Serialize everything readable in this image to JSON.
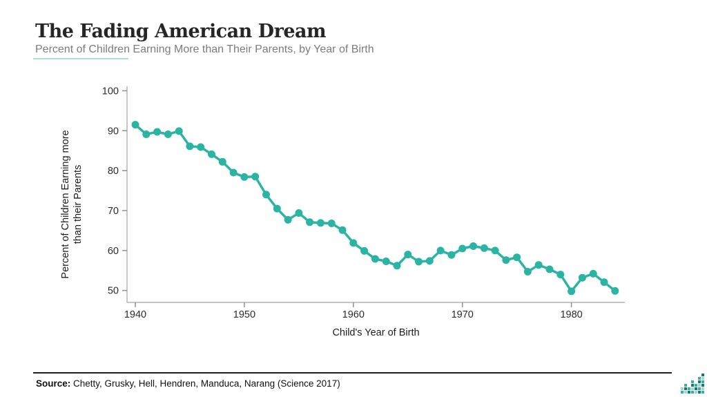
{
  "header": {
    "title": "The Fading American Dream",
    "subtitle": "Percent of Children Earning More than Their Parents, by Year of Birth"
  },
  "chart_data": {
    "type": "line",
    "title": "The Fading American Dream",
    "subtitle": "Percent of Children Earning More than Their Parents, by Year of Birth",
    "series_name": "Percent of children earning more than their parents",
    "x": [
      1940,
      1941,
      1942,
      1943,
      1944,
      1945,
      1946,
      1947,
      1948,
      1949,
      1950,
      1951,
      1952,
      1953,
      1954,
      1955,
      1956,
      1957,
      1958,
      1959,
      1960,
      1961,
      1962,
      1963,
      1964,
      1965,
      1966,
      1967,
      1968,
      1969,
      1970,
      1971,
      1972,
      1973,
      1974,
      1975,
      1976,
      1977,
      1978,
      1979,
      1980,
      1981,
      1982,
      1983,
      1984
    ],
    "values": [
      91.5,
      89.1,
      89.7,
      89.1,
      89.9,
      86.1,
      85.9,
      84.1,
      82.2,
      79.5,
      78.4,
      78.5,
      74.0,
      70.5,
      67.7,
      69.4,
      67.1,
      66.9,
      66.8,
      65.1,
      61.9,
      59.9,
      57.9,
      57.3,
      56.2,
      59.0,
      57.2,
      57.4,
      60.0,
      58.9,
      60.5,
      61.1,
      60.6,
      60.0,
      57.6,
      58.3,
      54.7,
      56.4,
      55.3,
      54.0,
      49.8,
      53.2,
      54.2,
      52.1,
      49.9
    ],
    "xlabel": "Child's Year of Birth",
    "ylabel_line1": "Percent of Children Earning more",
    "ylabel_line2": "than their Parents",
    "x_ticks": [
      1940,
      1950,
      1960,
      1970,
      1980
    ],
    "y_ticks": [
      100,
      90,
      80,
      70,
      60,
      50
    ],
    "xlim": [
      1939.2,
      1985
    ],
    "ylim": [
      47,
      101.5
    ],
    "grid": false,
    "legend_position": "none",
    "line_color": "#2bb3a3",
    "marker": "circle"
  },
  "footer": {
    "source_label": "Source:",
    "source_text": " Chetty, Grusky, Hell, Hendren, Manduca, Narang (Science 2017)"
  },
  "logo": {
    "column_heights": [
      2,
      3,
      2,
      4,
      3,
      5,
      6
    ],
    "palette": [
      "#35b2a2",
      "#9ed9d0",
      "#137a6d"
    ]
  },
  "colors": {
    "accent": "#2bb3a3",
    "axis_line": "#b3b3b3",
    "tick_mark": "#8f8f8f",
    "tick_label": "#2b2b2b",
    "axis_title": "#1c1c1c"
  }
}
